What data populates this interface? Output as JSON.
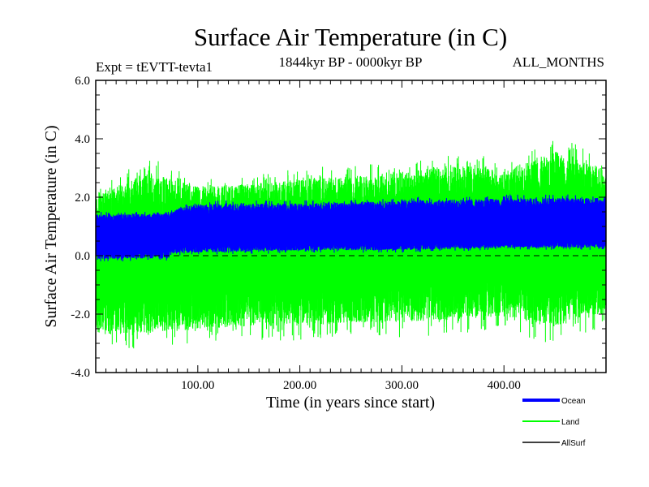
{
  "chart_data": {
    "type": "line",
    "title": "Surface Air Temperature (in C)",
    "subtitle": "1844kyr BP - 0000kyr BP",
    "experiment_label": "Expt = tEVTT-tevta1",
    "months_label": "ALL_MONTHS",
    "xlabel": "Time (in years since start)",
    "ylabel": "Surface Air Temperature (in C)",
    "xlim": [
      0,
      500
    ],
    "ylim": [
      -4.0,
      6.0
    ],
    "x_ticks": [
      {
        "value": 100,
        "label": "100.00"
      },
      {
        "value": 200,
        "label": "200.00"
      },
      {
        "value": 300,
        "label": "300.00"
      },
      {
        "value": 400,
        "label": "400.00"
      }
    ],
    "y_ticks": [
      {
        "value": 6.0,
        "label": "6.0"
      },
      {
        "value": 4.0,
        "label": "4.0"
      },
      {
        "value": 2.0,
        "label": "2.0"
      },
      {
        "value": 0.0,
        "label": "0.0"
      },
      {
        "value": -2.0,
        "label": "-2.0"
      },
      {
        "value": -4.0,
        "label": "-4.0"
      }
    ],
    "reference_line": 0.0,
    "series": [
      {
        "name": "Land",
        "color": "#00ff00",
        "samples_per_year": 12,
        "envelope": {
          "x": [
            0,
            50,
            100,
            150,
            200,
            250,
            300,
            350,
            400,
            450,
            500
          ],
          "max": [
            2.3,
            3.4,
            2.7,
            2.8,
            3.0,
            3.1,
            3.3,
            3.6,
            3.3,
            4.2,
            3.3
          ],
          "min": [
            -3.2,
            -3.2,
            -3.0,
            -2.9,
            -2.9,
            -2.8,
            -2.8,
            -2.7,
            -2.6,
            -3.1,
            -2.5
          ]
        },
        "trend_low": {
          "x": [
            0,
            500
          ],
          "y": [
            -1.2,
            -0.4
          ]
        },
        "trend_high": {
          "x": [
            0,
            500
          ],
          "y": [
            1.2,
            1.9
          ]
        }
      },
      {
        "name": "Ocean",
        "color": "#0000ff",
        "samples_per_year": 12,
        "envelope": {
          "x": [
            0,
            70,
            75,
            100,
            200,
            300,
            400,
            500
          ],
          "max": [
            1.5,
            1.5,
            1.6,
            1.9,
            1.9,
            2.0,
            2.1,
            2.1
          ],
          "min": [
            -0.2,
            -0.2,
            0.0,
            0.0,
            0.1,
            0.1,
            0.2,
            0.2
          ]
        },
        "trend_low": {
          "x": [
            0,
            75,
            80,
            500
          ],
          "y": [
            0.15,
            0.25,
            0.4,
            0.5
          ]
        },
        "trend_high": {
          "x": [
            0,
            75,
            80,
            500
          ],
          "y": [
            1.15,
            1.25,
            1.4,
            1.6
          ]
        }
      },
      {
        "name": "AllSurf",
        "color": "#000000",
        "samples_per_year": 0,
        "values": []
      }
    ],
    "legend": {
      "placement": "bottom-right",
      "entries": [
        {
          "label": "Ocean",
          "color": "#0000ff"
        },
        {
          "label": "Land",
          "color": "#00ff00"
        },
        {
          "label": "AllSurf",
          "color": "#000000"
        }
      ]
    }
  }
}
